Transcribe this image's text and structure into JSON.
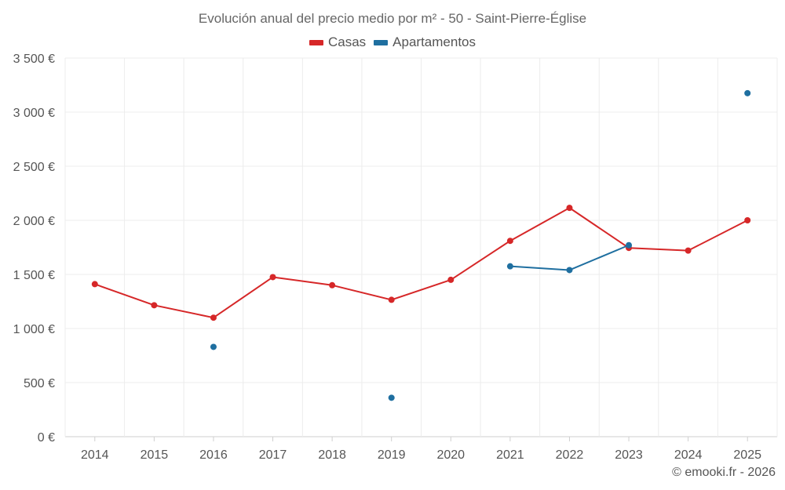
{
  "chart_data": {
    "type": "line",
    "title": "Evolución anual del precio medio por m² - 50 - Saint-Pierre-Église",
    "categories": [
      "2014",
      "2015",
      "2016",
      "2017",
      "2018",
      "2019",
      "2020",
      "2021",
      "2022",
      "2023",
      "2024",
      "2025"
    ],
    "series": [
      {
        "name": "Casas",
        "color": "#d62728",
        "values": [
          1410,
          1215,
          1100,
          1475,
          1400,
          1265,
          1450,
          1810,
          2115,
          1745,
          1720,
          2000
        ]
      },
      {
        "name": "Apartamentos",
        "color": "#1f6fa0",
        "values": [
          null,
          null,
          830,
          null,
          null,
          360,
          null,
          1575,
          1540,
          1770,
          null,
          3175
        ]
      }
    ],
    "ylim": [
      0,
      3500
    ],
    "yticks": [
      0,
      500,
      1000,
      1500,
      2000,
      2500,
      3000,
      3500
    ],
    "ytick_labels": [
      "0 €",
      "500 €",
      "1 000 €",
      "1 500 €",
      "2 000 €",
      "2 500 €",
      "3 000 €",
      "3 500 €"
    ],
    "xlabel": "",
    "ylabel": "",
    "grid": true,
    "legend": "top-center"
  },
  "credit": "© emooki.fr - 2026"
}
